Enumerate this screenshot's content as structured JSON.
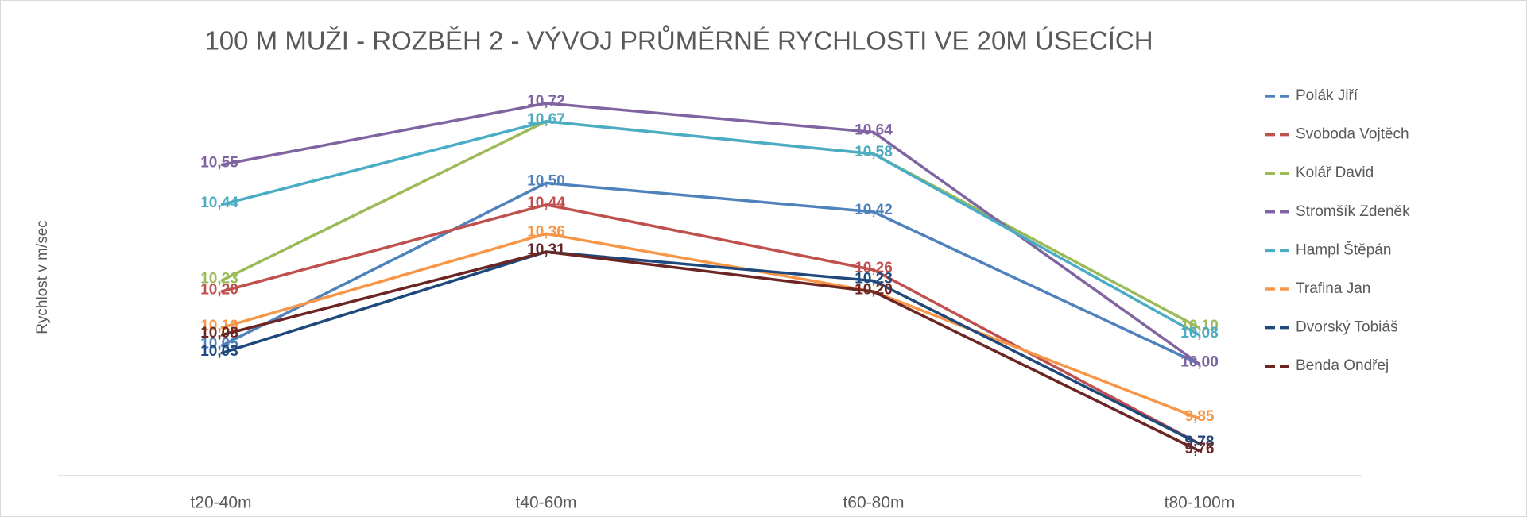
{
  "chart_data": {
    "type": "line",
    "title": "100 M MUŽI - ROZBĚH 2 - VÝVOJ PRŮMĚRNÉ RYCHLOSTI VE 20M ÚSECÍCH",
    "y_label": "Rychlost v m/sec",
    "categories": [
      "t20-40m",
      "t40-60m",
      "t60-80m",
      "t80-100m"
    ],
    "legend": "right",
    "series": [
      {
        "name": "Polák Jiří",
        "color": "#4f81bd",
        "values": [
          10.05,
          10.5,
          10.42,
          10.0
        ],
        "value_labels": [
          "10,05",
          "10,50",
          "10,42",
          "10,00"
        ]
      },
      {
        "name": "Svoboda Vojtěch",
        "color": "#c0504d",
        "values": [
          10.2,
          10.44,
          10.26,
          9.78
        ],
        "value_labels": [
          "10,20",
          "10,44",
          "10,26",
          "9,78"
        ]
      },
      {
        "name": "Kolář David",
        "color": "#9bbb59",
        "values": [
          10.23,
          10.67,
          10.58,
          10.1
        ],
        "value_labels": [
          "10,23",
          "10,67",
          "10,58",
          "10,10"
        ]
      },
      {
        "name": "Stromšík Zdeněk",
        "color": "#8064a2",
        "values": [
          10.55,
          10.72,
          10.64,
          10.0
        ],
        "value_labels": [
          "10,55",
          "10,72",
          "10,64",
          "10,00"
        ]
      },
      {
        "name": "Hampl Štěpán",
        "color": "#4bacc6",
        "values": [
          10.44,
          10.67,
          10.58,
          10.08
        ],
        "value_labels": [
          "10,44",
          "10,67",
          "10,58",
          "10,08"
        ]
      },
      {
        "name": "Trafina Jan",
        "color": "#f79646",
        "values": [
          10.1,
          10.36,
          10.2,
          9.85
        ],
        "value_labels": [
          "10,10",
          "10,36",
          "10,20",
          "9,85"
        ]
      },
      {
        "name": "Dvorský Tobiáš",
        "color": "#1f497d",
        "values": [
          10.03,
          10.31,
          10.23,
          9.78
        ],
        "value_labels": [
          "10,03",
          "10,31",
          "10,23",
          "9,78"
        ]
      },
      {
        "name": "Benda Ondřej",
        "color": "#6b2523",
        "values": [
          10.08,
          10.31,
          10.2,
          9.76
        ],
        "value_labels": [
          "10,08",
          "10,31",
          "10,20",
          "9,76"
        ]
      }
    ]
  }
}
